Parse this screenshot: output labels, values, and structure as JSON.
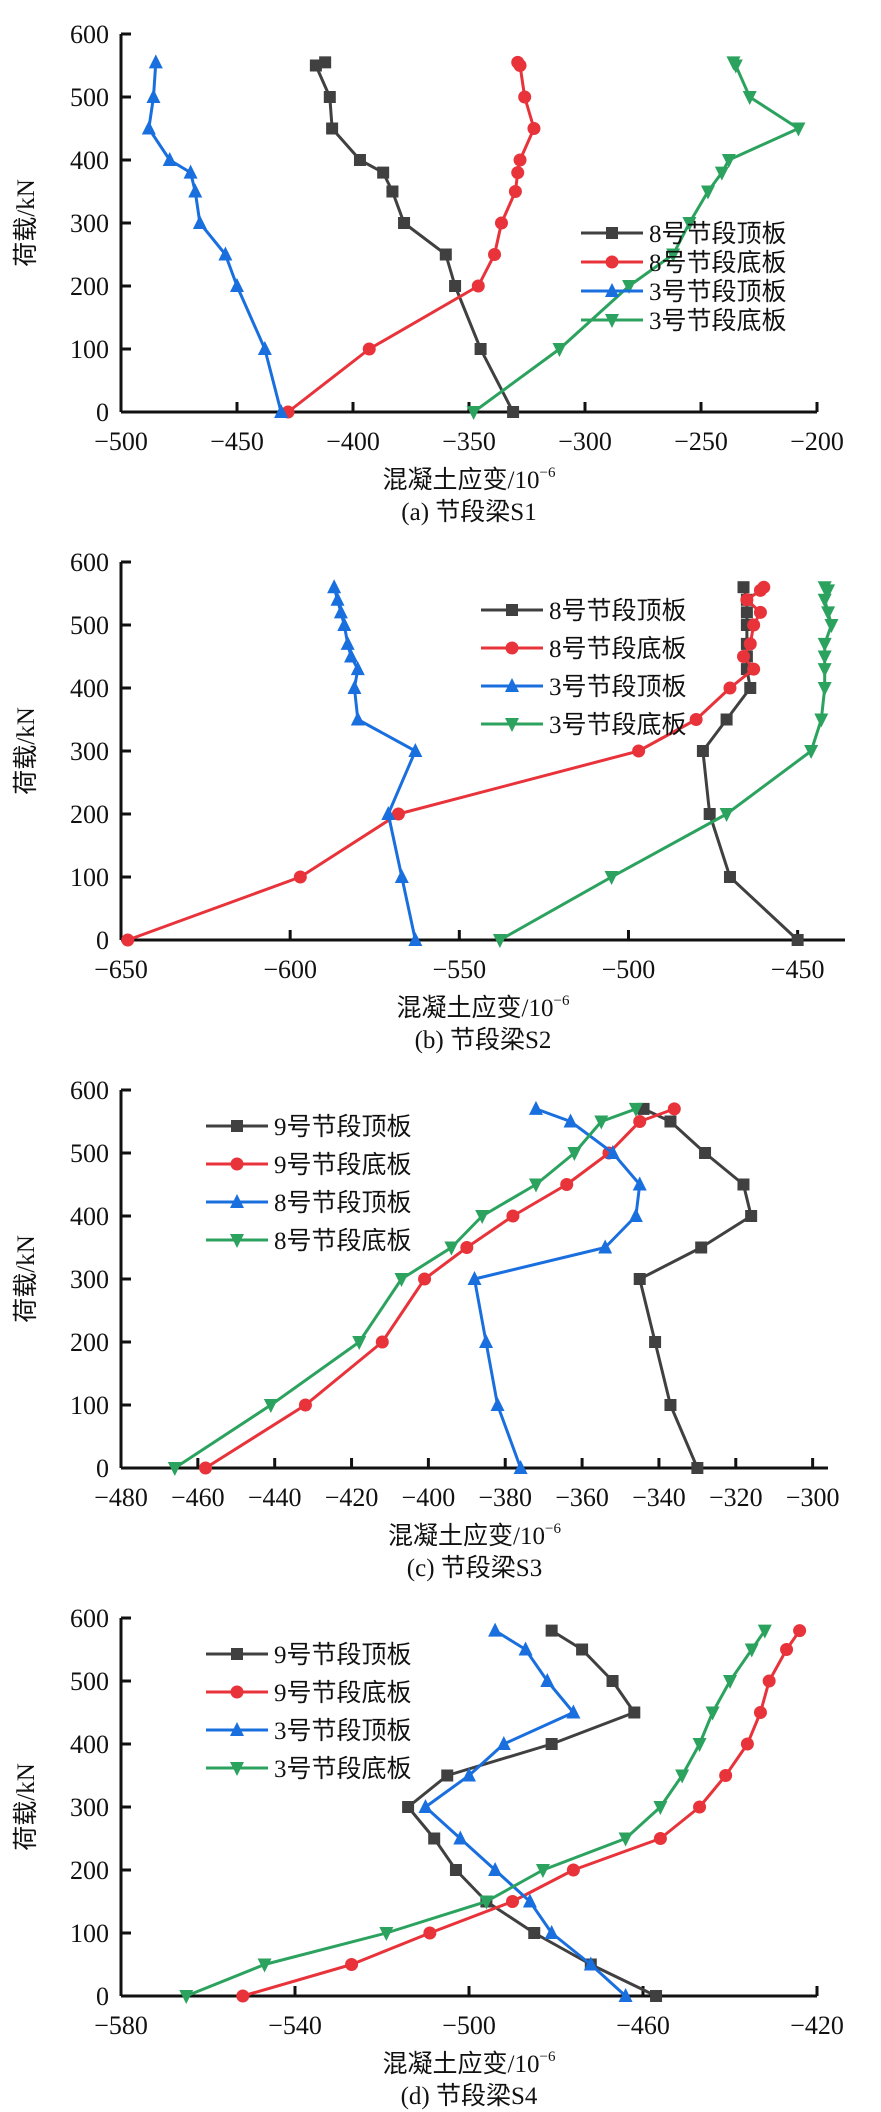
{
  "chart_data": [
    {
      "type": "line",
      "caption": "(a)  节段梁S1",
      "xlabel": "混凝土应变/10",
      "xlabel_exp": "−6",
      "ylabel": "荷载/kN",
      "xlim": [
        -500,
        -200
      ],
      "ylim": [
        0,
        600
      ],
      "xticks": [
        -500,
        -450,
        -400,
        -350,
        -300,
        -250,
        -200
      ],
      "yticks": [
        0,
        100,
        200,
        300,
        400,
        500,
        600
      ],
      "legend": "bottom-right",
      "series": [
        {
          "name": "8号节段顶板",
          "marker": "square",
          "color": "#404040",
          "points": [
            [
              -331,
              0
            ],
            [
              -345,
              100
            ],
            [
              -356,
              200
            ],
            [
              -360,
              250
            ],
            [
              -378,
              300
            ],
            [
              -383,
              350
            ],
            [
              -387,
              380
            ],
            [
              -397,
              400
            ],
            [
              -409,
              450
            ],
            [
              -410,
              500
            ],
            [
              -416,
              550
            ],
            [
              -412,
              555
            ]
          ]
        },
        {
          "name": "8号节段底板",
          "marker": "circle",
          "color": "#e8333a",
          "points": [
            [
              -428,
              0
            ],
            [
              -393,
              100
            ],
            [
              -346,
              200
            ],
            [
              -339,
              250
            ],
            [
              -336,
              300
            ],
            [
              -330,
              350
            ],
            [
              -329,
              380
            ],
            [
              -328,
              400
            ],
            [
              -322,
              450
            ],
            [
              -326,
              500
            ],
            [
              -328,
              550
            ],
            [
              -329,
              555
            ]
          ]
        },
        {
          "name": "3号节段顶板",
          "marker": "triangle-up",
          "color": "#1a6fdf",
          "points": [
            [
              -431,
              0
            ],
            [
              -438,
              100
            ],
            [
              -450,
              200
            ],
            [
              -455,
              250
            ],
            [
              -466,
              300
            ],
            [
              -468,
              350
            ],
            [
              -470,
              380
            ],
            [
              -479,
              400
            ],
            [
              -488,
              450
            ],
            [
              -486,
              500
            ],
            [
              -485,
              555
            ]
          ]
        },
        {
          "name": "3号节段底板",
          "marker": "triangle-down",
          "color": "#2ca25f",
          "points": [
            [
              -348,
              0
            ],
            [
              -311,
              100
            ],
            [
              -281,
              200
            ],
            [
              -262,
              250
            ],
            [
              -255,
              300
            ],
            [
              -247,
              350
            ],
            [
              -241,
              380
            ],
            [
              -238,
              400
            ],
            [
              -208,
              450
            ],
            [
              -229,
              500
            ],
            [
              -235,
              550
            ],
            [
              -236,
              555
            ]
          ]
        }
      ]
    },
    {
      "type": "line",
      "caption": "(b)  节段梁S2",
      "xlabel": "混凝土应变/10",
      "xlabel_exp": "−6",
      "ylabel": "荷载/kN",
      "xlim": [
        -650,
        -436
      ],
      "ylim": [
        0,
        600
      ],
      "xticks": [
        -650,
        -600,
        -550,
        -500,
        -450
      ],
      "yticks": [
        0,
        100,
        200,
        300,
        400,
        500,
        600
      ],
      "legend": "top-center",
      "series": [
        {
          "name": "8号节段顶板",
          "marker": "square",
          "color": "#404040",
          "points": [
            [
              -450,
              0
            ],
            [
              -470,
              100
            ],
            [
              -476,
              200
            ],
            [
              -478,
              300
            ],
            [
              -471,
              350
            ],
            [
              -464,
              400
            ],
            [
              -465,
              430
            ],
            [
              -465,
              450
            ],
            [
              -465,
              470
            ],
            [
              -465,
              500
            ],
            [
              -465,
              520
            ],
            [
              -465,
              540
            ],
            [
              -466,
              560
            ]
          ]
        },
        {
          "name": "8号节段底板",
          "marker": "circle",
          "color": "#e8333a",
          "points": [
            [
              -648,
              0
            ],
            [
              -597,
              100
            ],
            [
              -568,
              200
            ],
            [
              -497,
              300
            ],
            [
              -480,
              350
            ],
            [
              -470,
              400
            ],
            [
              -463,
              430
            ],
            [
              -466,
              450
            ],
            [
              -464,
              470
            ],
            [
              -463,
              500
            ],
            [
              -461,
              520
            ],
            [
              -465,
              540
            ],
            [
              -461,
              555
            ],
            [
              -460,
              560
            ]
          ]
        },
        {
          "name": "3号节段顶板",
          "marker": "triangle-up",
          "color": "#1a6fdf",
          "points": [
            [
              -563,
              0
            ],
            [
              -567,
              100
            ],
            [
              -571,
              200
            ],
            [
              -563,
              300
            ],
            [
              -580,
              350
            ],
            [
              -581,
              400
            ],
            [
              -580,
              430
            ],
            [
              -582,
              450
            ],
            [
              -583,
              470
            ],
            [
              -584,
              500
            ],
            [
              -585,
              520
            ],
            [
              -586,
              540
            ],
            [
              -587,
              560
            ]
          ]
        },
        {
          "name": "3号节段底板",
          "marker": "triangle-down",
          "color": "#2ca25f",
          "points": [
            [
              -538,
              0
            ],
            [
              -505,
              100
            ],
            [
              -471,
              200
            ],
            [
              -446,
              300
            ],
            [
              -443,
              350
            ],
            [
              -442,
              400
            ],
            [
              -442,
              430
            ],
            [
              -442,
              450
            ],
            [
              -442,
              470
            ],
            [
              -440,
              500
            ],
            [
              -441,
              520
            ],
            [
              -442,
              540
            ],
            [
              -441,
              555
            ],
            [
              -442,
              560
            ]
          ]
        }
      ]
    },
    {
      "type": "line",
      "caption": "(c)  节段梁S3",
      "xlabel": "混凝土应变/10",
      "xlabel_exp": "−6",
      "ylabel": "荷载/kN",
      "xlim": [
        -480,
        -296
      ],
      "ylim": [
        0,
        600
      ],
      "xticks": [
        -480,
        -460,
        -440,
        -420,
        -400,
        -380,
        -360,
        -340,
        -320,
        -300
      ],
      "yticks": [
        0,
        100,
        200,
        300,
        400,
        500,
        600
      ],
      "legend": "top-left",
      "series": [
        {
          "name": "9号节段顶板",
          "marker": "square",
          "color": "#404040",
          "points": [
            [
              -330,
              0
            ],
            [
              -337,
              100
            ],
            [
              -341,
              200
            ],
            [
              -345,
              300
            ],
            [
              -329,
              350
            ],
            [
              -316,
              400
            ],
            [
              -318,
              450
            ],
            [
              -328,
              500
            ],
            [
              -337,
              550
            ],
            [
              -344,
              570
            ]
          ]
        },
        {
          "name": "9号节段底板",
          "marker": "circle",
          "color": "#e8333a",
          "points": [
            [
              -458,
              0
            ],
            [
              -432,
              100
            ],
            [
              -412,
              200
            ],
            [
              -401,
              300
            ],
            [
              -390,
              350
            ],
            [
              -378,
              400
            ],
            [
              -364,
              450
            ],
            [
              -353,
              500
            ],
            [
              -345,
              550
            ],
            [
              -336,
              570
            ]
          ]
        },
        {
          "name": "8号节段顶板",
          "marker": "triangle-up",
          "color": "#1a6fdf",
          "points": [
            [
              -376,
              0
            ],
            [
              -382,
              100
            ],
            [
              -385,
              200
            ],
            [
              -388,
              300
            ],
            [
              -354,
              350
            ],
            [
              -346,
              400
            ],
            [
              -345,
              450
            ],
            [
              -352,
              500
            ],
            [
              -363,
              550
            ],
            [
              -372,
              570
            ]
          ]
        },
        {
          "name": "8号节段底板",
          "marker": "triangle-down",
          "color": "#2ca25f",
          "points": [
            [
              -466,
              0
            ],
            [
              -441,
              100
            ],
            [
              -418,
              200
            ],
            [
              -407,
              300
            ],
            [
              -394,
              350
            ],
            [
              -386,
              400
            ],
            [
              -372,
              450
            ],
            [
              -362,
              500
            ],
            [
              -355,
              550
            ],
            [
              -346,
              570
            ]
          ]
        }
      ]
    },
    {
      "type": "line",
      "caption": "(d)  节段梁S4",
      "xlabel": "混凝土应变/10",
      "xlabel_exp": "−6",
      "ylabel": "荷载/kN",
      "xlim": [
        -580,
        -420
      ],
      "ylim": [
        0,
        600
      ],
      "xticks": [
        -580,
        -540,
        -500,
        -460,
        -420
      ],
      "yticks": [
        0,
        100,
        200,
        300,
        400,
        500,
        600
      ],
      "legend": "top-left",
      "series": [
        {
          "name": "9号节段顶板",
          "marker": "square",
          "color": "#404040",
          "points": [
            [
              -457,
              0
            ],
            [
              -472,
              50
            ],
            [
              -485,
              100
            ],
            [
              -496,
              150
            ],
            [
              -503,
              200
            ],
            [
              -508,
              250
            ],
            [
              -514,
              300
            ],
            [
              -505,
              350
            ],
            [
              -481,
              400
            ],
            [
              -462,
              450
            ],
            [
              -467,
              500
            ],
            [
              -474,
              550
            ],
            [
              -481,
              580
            ]
          ]
        },
        {
          "name": "9号节段底板",
          "marker": "circle",
          "color": "#e8333a",
          "points": [
            [
              -552,
              0
            ],
            [
              -527,
              50
            ],
            [
              -509,
              100
            ],
            [
              -490,
              150
            ],
            [
              -476,
              200
            ],
            [
              -456,
              250
            ],
            [
              -447,
              300
            ],
            [
              -441,
              350
            ],
            [
              -436,
              400
            ],
            [
              -433,
              450
            ],
            [
              -431,
              500
            ],
            [
              -427,
              550
            ],
            [
              -424,
              580
            ]
          ]
        },
        {
          "name": "3号节段顶板",
          "marker": "triangle-up",
          "color": "#1a6fdf",
          "points": [
            [
              -464,
              0
            ],
            [
              -472,
              50
            ],
            [
              -481,
              100
            ],
            [
              -486,
              150
            ],
            [
              -494,
              200
            ],
            [
              -502,
              250
            ],
            [
              -510,
              300
            ],
            [
              -500,
              350
            ],
            [
              -492,
              400
            ],
            [
              -476,
              450
            ],
            [
              -482,
              500
            ],
            [
              -487,
              550
            ],
            [
              -494,
              580
            ]
          ]
        },
        {
          "name": "3号节段底板",
          "marker": "triangle-down",
          "color": "#2ca25f",
          "points": [
            [
              -565,
              0
            ],
            [
              -547,
              50
            ],
            [
              -519,
              100
            ],
            [
              -496,
              150
            ],
            [
              -483,
              200
            ],
            [
              -464,
              250
            ],
            [
              -456,
              300
            ],
            [
              -451,
              350
            ],
            [
              -447,
              400
            ],
            [
              -444,
              450
            ],
            [
              -440,
              500
            ],
            [
              -435,
              550
            ],
            [
              -432,
              580
            ]
          ]
        }
      ]
    }
  ]
}
